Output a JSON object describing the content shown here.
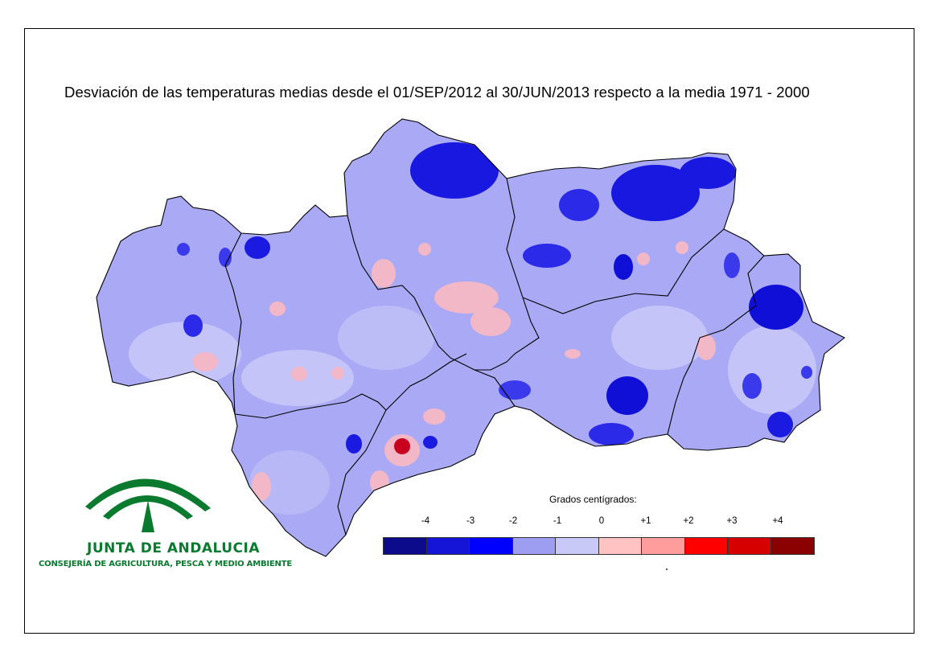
{
  "title": "Desviación de las temperaturas medias desde el 01/SEP/2012 al 30/JUN/2013 respecto a la media 1971 - 2000",
  "legend": {
    "title": "Grados centígrados:",
    "ticks": [
      "-4",
      "-3",
      "-2",
      "-1",
      "0",
      "+1",
      "+2",
      "+3",
      "+4"
    ],
    "colors": [
      "#0b0b8c",
      "#1515d8",
      "#0000ff",
      "#9d9df2",
      "#c9c9f7",
      "#ffc3c3",
      "#ff9c9c",
      "#ff0000",
      "#d60000",
      "#8b0000"
    ]
  },
  "logo": {
    "name": "JUNTA DE ANDALUCIA",
    "subtitle": "CONSEJERÍA DE AGRICULTURA, PESCA Y MEDIO AMBIENTE",
    "color": "#0a7a2f"
  },
  "map_colors": {
    "base": "#a9a9f5",
    "light": "#c4c4f8",
    "blue": "#1a1ae6",
    "pink": "#f2b8c8",
    "red": "#c8001e",
    "border": "#000000"
  }
}
